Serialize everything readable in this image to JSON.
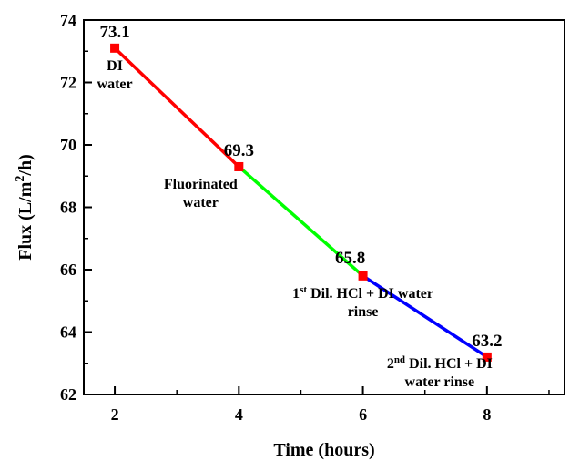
{
  "chart_data": {
    "type": "line",
    "x": [
      2,
      4,
      6,
      8
    ],
    "y": [
      73.1,
      69.3,
      65.8,
      63.2
    ],
    "data_labels": [
      "73.1",
      "69.3",
      "65.8",
      "63.2"
    ],
    "xlabel": "Time (hours)",
    "ylabel_parts": {
      "main": "Flux (L/m",
      "sup": "2",
      "tail": "/h)"
    },
    "xlim": [
      1.5,
      9.25
    ],
    "ylim": [
      62,
      74
    ],
    "xticks": [
      2,
      4,
      6,
      8
    ],
    "yticks": [
      62,
      64,
      66,
      68,
      70,
      72,
      74
    ],
    "grid": false,
    "segment_colors": [
      "#ff0000",
      "#00ff00",
      "#0000ff"
    ],
    "marker_color": "#ff0000",
    "annotations": [
      {
        "lines": [
          [
            "DI"
          ],
          [
            "water"
          ]
        ]
      },
      {
        "lines": [
          [
            "Fluorinated"
          ],
          [
            "water"
          ]
        ]
      },
      {
        "lines": [
          [
            "1",
            "st",
            " Dil. HCl + DI water"
          ],
          [
            "rinse"
          ]
        ]
      },
      {
        "lines": [
          [
            "2",
            "nd",
            " Dil. HCl + DI"
          ],
          [
            "water rinse"
          ]
        ]
      }
    ]
  }
}
